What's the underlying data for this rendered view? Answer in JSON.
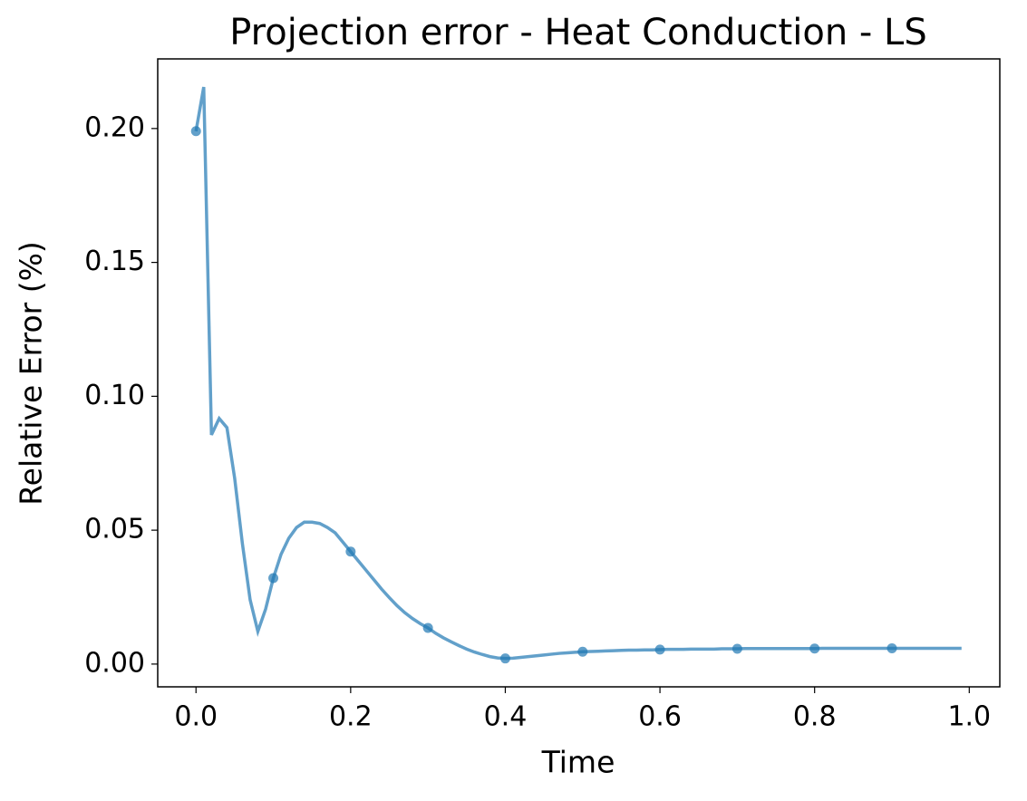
{
  "chart_data": {
    "type": "line",
    "title": "Projection error - Heat Conduction - LS",
    "xlabel": "Time",
    "ylabel": "Relative Error (%)",
    "xlim": [
      -0.0495,
      1.0395
    ],
    "ylim": [
      -0.0085,
      0.226
    ],
    "xticks": [
      {
        "value": 0,
        "label": "0.0"
      },
      {
        "value": 0.2,
        "label": "0.2"
      },
      {
        "value": 0.4,
        "label": "0.4"
      },
      {
        "value": 0.6,
        "label": "0.6"
      },
      {
        "value": 0.8,
        "label": "0.8"
      },
      {
        "value": 1,
        "label": "1.0"
      }
    ],
    "yticks": [
      {
        "value": 0,
        "label": "0.00"
      },
      {
        "value": 0.05,
        "label": "0.05"
      },
      {
        "value": 0.1,
        "label": "0.10"
      },
      {
        "value": 0.15,
        "label": "0.15"
      },
      {
        "value": 0.2,
        "label": "0.20"
      }
    ],
    "series": [
      {
        "type": "line",
        "color": "#1f77b4",
        "x": [
          0,
          0.01,
          0.02,
          0.03,
          0.04,
          0.05,
          0.06,
          0.07,
          0.08,
          0.09,
          0.1,
          0.11,
          0.12,
          0.13,
          0.14,
          0.15,
          0.16,
          0.17,
          0.18,
          0.19,
          0.2,
          0.21,
          0.22,
          0.23,
          0.24,
          0.25,
          0.26,
          0.27,
          0.28,
          0.29,
          0.3,
          0.31,
          0.32,
          0.33,
          0.34,
          0.35,
          0.36,
          0.37,
          0.38,
          0.39,
          0.4,
          0.41,
          0.42,
          0.43,
          0.44,
          0.45,
          0.46,
          0.47,
          0.48,
          0.49,
          0.5,
          0.51,
          0.52,
          0.53,
          0.54,
          0.55,
          0.56,
          0.57,
          0.58,
          0.59,
          0.6,
          0.61,
          0.62,
          0.63,
          0.64,
          0.65,
          0.66,
          0.67,
          0.68,
          0.69,
          0.7,
          0.71,
          0.72,
          0.73,
          0.74,
          0.75,
          0.76,
          0.77,
          0.78,
          0.79,
          0.8,
          0.81,
          0.82,
          0.83,
          0.84,
          0.85,
          0.86,
          0.87,
          0.88,
          0.89,
          0.9,
          0.91,
          0.92,
          0.93,
          0.94,
          0.95,
          0.96,
          0.97,
          0.98,
          0.99
        ],
        "values": [
          0.199,
          0.2155,
          0.0856,
          0.0917,
          0.0883,
          0.0694,
          0.045,
          0.024,
          0.0122,
          0.0205,
          0.0321,
          0.041,
          0.047,
          0.051,
          0.053,
          0.053,
          0.0525,
          0.051,
          0.049,
          0.0455,
          0.042,
          0.0385,
          0.035,
          0.0315,
          0.028,
          0.0248,
          0.0218,
          0.0192,
          0.017,
          0.0151,
          0.0135,
          0.0115,
          0.0098,
          0.0083,
          0.0069,
          0.0056,
          0.0045,
          0.0036,
          0.0028,
          0.0023,
          0.0021,
          0.0022,
          0.0025,
          0.0028,
          0.0031,
          0.0034,
          0.0037,
          0.004,
          0.0042,
          0.0044,
          0.0046,
          0.0047,
          0.0048,
          0.0049,
          0.005,
          0.0051,
          0.0052,
          0.0052,
          0.0053,
          0.0053,
          0.0054,
          0.0055,
          0.0055,
          0.0055,
          0.0056,
          0.0056,
          0.0056,
          0.0056,
          0.0057,
          0.0057,
          0.0057,
          0.0058,
          0.0058,
          0.0058,
          0.0058,
          0.0058,
          0.0058,
          0.0058,
          0.0058,
          0.0058,
          0.0058,
          0.0059,
          0.0059,
          0.0059,
          0.0059,
          0.0059,
          0.0059,
          0.0059,
          0.0059,
          0.0059,
          0.0059,
          0.0059,
          0.0059,
          0.0059,
          0.0059,
          0.0059,
          0.0059,
          0.0059,
          0.0059,
          0.0059
        ]
      },
      {
        "type": "scatter",
        "color": "#1f77b4",
        "x": [
          0,
          0.1,
          0.2,
          0.3,
          0.4,
          0.5,
          0.6,
          0.7,
          0.8,
          0.9
        ],
        "values": [
          0.199,
          0.0321,
          0.042,
          0.0135,
          0.0021,
          0.0046,
          0.0054,
          0.0057,
          0.0058,
          0.0059
        ]
      }
    ]
  }
}
